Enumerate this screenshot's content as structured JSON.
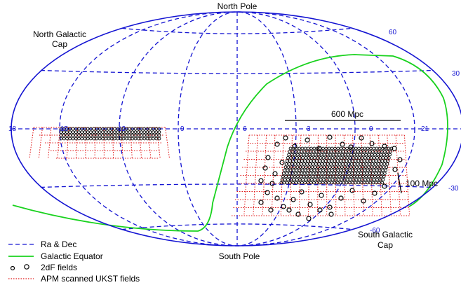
{
  "labels": {
    "north_pole": "North Pole",
    "south_pole": "South Pole",
    "north_cap_line1": "North Galactic",
    "north_cap_line2": "Cap",
    "south_cap_line1": "South Galactic",
    "south_cap_line2": "Cap"
  },
  "ra_ticks": [
    "18",
    "15",
    "12",
    "9",
    "6",
    "3",
    "0",
    "21"
  ],
  "dec_ticks": [
    "60",
    "30",
    "-30",
    "-60"
  ],
  "scale_bars": {
    "large": "600 Mpc",
    "small": "100 Mpc"
  },
  "legend": [
    {
      "label": "Ra & Dec",
      "symbol": "dashed-line",
      "color": "#1414d2"
    },
    {
      "label": "Galactic Equator",
      "symbol": "solid-line",
      "color": "#19d21e"
    },
    {
      "label": "2dF fields",
      "symbol": "circles",
      "color": "#000000"
    },
    {
      "label": "APM scanned UKST fields",
      "symbol": "dotted-line",
      "color": "#e01a1a"
    }
  ],
  "colors": {
    "grid": "#1414d2",
    "galactic_equator": "#19d21e",
    "ukst": "#e01a1a",
    "fields": "#000000"
  }
}
